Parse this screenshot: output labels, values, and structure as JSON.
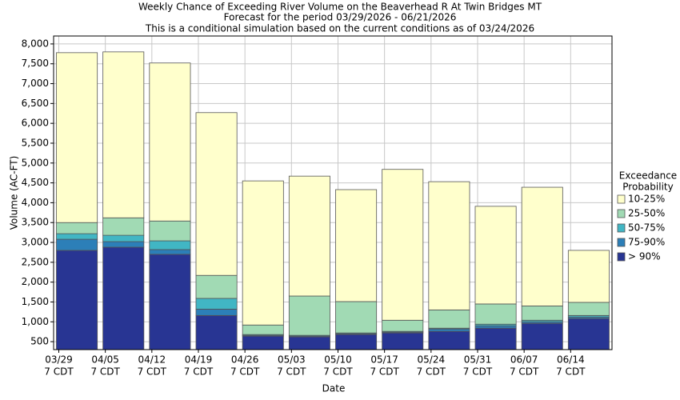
{
  "chart_data": {
    "type": "stacked_bar",
    "title": "Weekly Chance of Exceeding River Volume on the Beaverhead R At Twin Bridges MT",
    "subtitle": "Forecast for the period 03/29/2026 - 06/21/2026",
    "note": "This is a conditional simulation based on the current conditions as of 03/24/2026",
    "y_label": "Volume (AC-FT)",
    "x_label": "Date",
    "legend_title": [
      "Exceedance",
      "Probability"
    ],
    "categories": [
      "03/29",
      "04/05",
      "04/12",
      "04/19",
      "04/26",
      "05/03",
      "05/10",
      "05/17",
      "05/24",
      "05/31",
      "06/07",
      "06/14"
    ],
    "category_sublabel": "7 CDT",
    "series": [
      {
        "name": "> 90%",
        "color": "#283593",
        "values": [
          2800,
          2880,
          2700,
          1160,
          640,
          620,
          680,
          720,
          760,
          840,
          960,
          1080
        ]
      },
      {
        "name": "75-90%",
        "color": "#2c7fb8",
        "values": [
          280,
          140,
          120,
          160,
          20,
          20,
          20,
          20,
          60,
          60,
          40,
          40
        ]
      },
      {
        "name": "50-75%",
        "color": "#41b6c4",
        "values": [
          140,
          160,
          220,
          270,
          20,
          20,
          20,
          20,
          20,
          40,
          40,
          40
        ]
      },
      {
        "name": "25-50%",
        "color": "#a1dab4",
        "values": [
          280,
          440,
          500,
          580,
          240,
          990,
          790,
          280,
          460,
          510,
          360,
          330
        ]
      },
      {
        "name": "10-25%",
        "color": "#ffffcc",
        "values": [
          4280,
          4180,
          3980,
          4100,
          3630,
          3020,
          2820,
          3800,
          3230,
          2460,
          2990,
          1310
        ]
      }
    ],
    "ylim": [
      300,
      8200
    ],
    "yticks": [
      500,
      {
        "value": 1000,
        "label": "1,000"
      },
      {
        "value": 1500,
        "label": "1,500"
      },
      {
        "value": 2000,
        "label": "2,000"
      },
      {
        "value": 2500,
        "label": "2,500"
      },
      {
        "value": 3000,
        "label": "3,000"
      },
      {
        "value": 3500,
        "label": "3,500"
      },
      {
        "value": 4000,
        "label": "4,000"
      },
      {
        "value": 4500,
        "label": "4,500"
      },
      {
        "value": 5000,
        "label": "5,000"
      },
      {
        "value": 5500,
        "label": "5,500"
      },
      {
        "value": 6000,
        "label": "6,000"
      },
      {
        "value": 6500,
        "label": "6,500"
      },
      {
        "value": 7000,
        "label": "7,000"
      },
      {
        "value": 7500,
        "label": "7,500"
      },
      {
        "value": 8000,
        "label": "8,000"
      }
    ],
    "grid": true
  }
}
